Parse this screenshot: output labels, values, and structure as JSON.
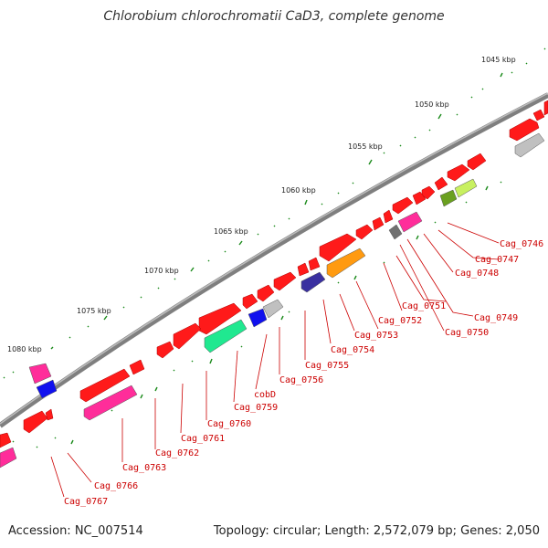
{
  "title": "Chlorobium chlorochromatii CaD3, complete genome",
  "footer": {
    "accession": "Accession: NC_007514",
    "info": "Topology: circular; Length: 2,572,079 bp; Genes: 2,050"
  },
  "kbp_labels": [
    "1045 kbp",
    "1050 kbp",
    "1055 kbp",
    "1060 kbp",
    "1065 kbp",
    "1070 kbp",
    "1075 kbp",
    "1080 kbp"
  ],
  "gene_labels": [
    "Cag_0746",
    "Cag_0747",
    "Cag_0748",
    "Cag_0749",
    "Cag_0750",
    "Cag_0751",
    "Cag_0752",
    "Cag_0753",
    "Cag_0754",
    "Cag_0755",
    "Cag_0756",
    "cobD",
    "Cag_0759",
    "Cag_0760",
    "Cag_0761",
    "Cag_0762",
    "Cag_0763",
    "Cag_0766",
    "Cag_0767"
  ],
  "colors": {
    "backbone": "#808080",
    "cds": "#ff0000",
    "magenta": "#ff2d9a",
    "blue": "#1010ee",
    "navy": "#3a30a0",
    "grey": "#c0c0c0",
    "dark_grey": "#707070",
    "orange": "#ff9a10",
    "spring_green": "#20e890",
    "olive": "#6aa020",
    "lime": "#c8f060",
    "tick_green": "#1a8a1a",
    "label": "#cc0000"
  }
}
